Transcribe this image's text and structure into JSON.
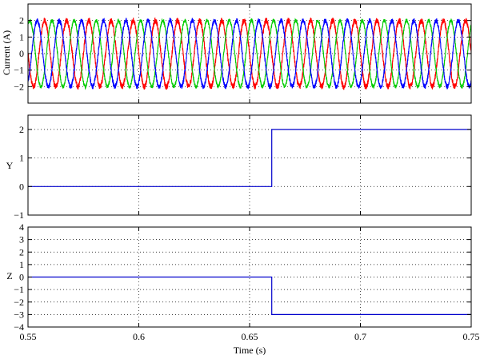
{
  "chart_data": [
    {
      "type": "line",
      "ylabel": "Current (A)",
      "xlim": [
        0.55,
        0.75
      ],
      "ylim": [
        -3,
        3
      ],
      "x_ticks": [
        0.55,
        0.6,
        0.65,
        0.7,
        0.75
      ],
      "y_ticks": [
        2,
        1,
        0,
        -1,
        -2
      ],
      "y_tick_labels": [
        "2",
        "1",
        "0",
        "−1",
        "−2"
      ],
      "grid": true,
      "series": [
        {
          "color": "#ff0000",
          "amplitude": 2.0,
          "frequency_hz": 100,
          "phase_deg": 180,
          "noise": 0.18
        },
        {
          "color": "#00cc00",
          "amplitude": 2.0,
          "frequency_hz": 100,
          "phase_deg": 60,
          "noise": 0.12
        },
        {
          "color": "#0000ff",
          "amplitude": 2.0,
          "frequency_hz": 100,
          "phase_deg": -60,
          "noise": 0.15
        }
      ]
    },
    {
      "type": "line",
      "ylabel": "Y",
      "xlim": [
        0.55,
        0.75
      ],
      "ylim": [
        -1,
        2.5
      ],
      "x_ticks": [
        0.55,
        0.6,
        0.65,
        0.7,
        0.75
      ],
      "y_ticks": [
        2,
        1,
        0,
        -1
      ],
      "y_tick_labels": [
        "2",
        "1",
        "0",
        "−1"
      ],
      "grid": true,
      "series": [
        {
          "color": "#0000cc",
          "points": [
            [
              0.55,
              0
            ],
            [
              0.66,
              0
            ],
            [
              0.66,
              2
            ],
            [
              0.75,
              2
            ]
          ]
        }
      ]
    },
    {
      "type": "line",
      "ylabel": "Z",
      "xlabel": "Time (s)",
      "xlim": [
        0.55,
        0.75
      ],
      "ylim": [
        -4,
        4
      ],
      "x_ticks": [
        0.55,
        0.6,
        0.65,
        0.7,
        0.75
      ],
      "x_tick_labels": [
        "0.55",
        "0.6",
        "0.65",
        "0.7",
        "0.75"
      ],
      "y_ticks": [
        4,
        3,
        2,
        1,
        0,
        -1,
        -2,
        -3,
        -4
      ],
      "y_tick_labels": [
        "4",
        "3",
        "2",
        "1",
        "0",
        "−1",
        "−2",
        "−3",
        "−4"
      ],
      "grid": true,
      "series": [
        {
          "color": "#0000cc",
          "points": [
            [
              0.55,
              0
            ],
            [
              0.66,
              0
            ],
            [
              0.66,
              -3
            ],
            [
              0.75,
              -3
            ]
          ]
        }
      ]
    }
  ]
}
